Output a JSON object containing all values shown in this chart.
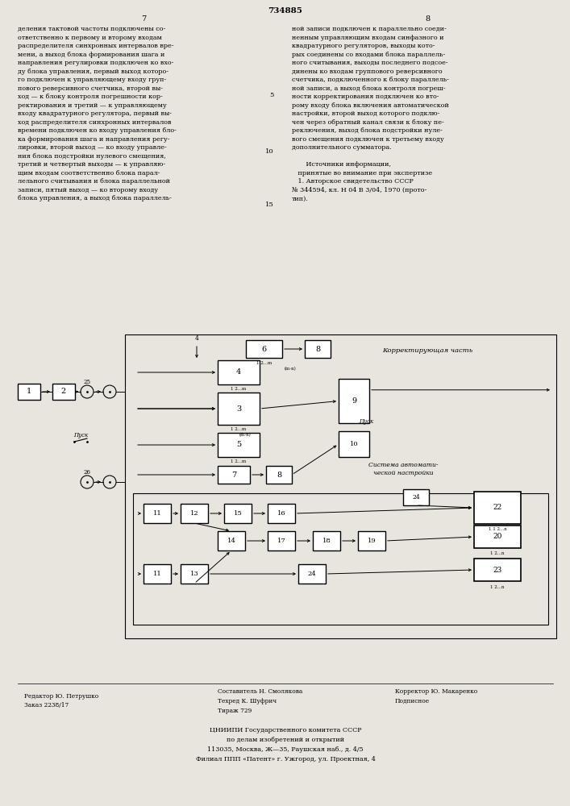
{
  "page_color": "#e8e5de",
  "patent_number": "734885",
  "col_left_header": "7",
  "col_right_header": "8",
  "text_left": "деления тактовой частоты подключены со-\nответственно к первому и второму входам\nраспределителя синхронных интервалов вре-\nмени, а выход блока формирования шага и\nнаправления регулировки подключен ко вхо-\nду блока управления, первый выход которо-\nго подключен к управляющему входу груп-\nпового реверсивного счетчика, второй вы-\nход — к блоку контроля погрешности кор-\nректирования и третий — к управляющему\nвходу квадратурного регулятора, первый вы-\nход распределителя синхронных интервалов\nвремени подключен ко входу управления бло-\nка формирования шага и направления регу-\nлировки, второй выход — ко входу управле-\nния блока подстройки нулевого смещения,\nтретий и четвертый выходы — к управляю-\nщим входам соответственно блока парал-\nлельного считывания и блока параллельной\nзаписи, пятый выход — ко второму входу\nблока управления, а выход блока параллель-",
  "text_right": "ной записи подключен к параллельно соеди-\nненным управляющим входам синфазного и\nквадратурного регуляторов, выходы кото-\nрых соединены со входами блока параллель-\nного считывания, выходы последнего подсое-\nдинены ко входам группового реверсивного\nсчетчика, подключенного к блоку параллель-\nной записи, а выход блока контроля погреш-\nности корректирования подключен ко вто-\nрому входу блока включения автоматической\nнастройки, второй выход которого подклю-\nчен через обратный канал связи к блоку пе-\nреключения, выход блока подстройки нуле-\nвого смещения подключен к третьему входу\nдополнительного сумматора.",
  "line_number_5": "5",
  "line_number_10": "10",
  "line_number_15": "15",
  "sources_text": "       Источники информации,\n   принятые во внимание при экспертизе\n   1. Авторское свидетельство СССР\n№ 344594, кл. Н 04 В 3/04, 1970 (прото-\nтип).",
  "footer_left": "Редактор Ю. Петрушко\nЗаказ 2238/17",
  "footer_center_top": "Составитель Н. Смолякова",
  "footer_center_mid": "Техред К. Шуфрич",
  "footer_center_bot": "Тираж 729",
  "footer_right_top": "Корректор Ю. Макаренко",
  "footer_right_bot": "Подписное",
  "footer_bottom1": "ЦНИИПИ Государственного комитета СССР",
  "footer_bottom2": "по делам изобретений и открытий",
  "footer_bottom3": "113035, Москва, Ж—35, Раушская наб., д. 4/5",
  "footer_bottom4": "Филиал ППП «Патент» г. Ужгород, ул. Проектная, 4"
}
